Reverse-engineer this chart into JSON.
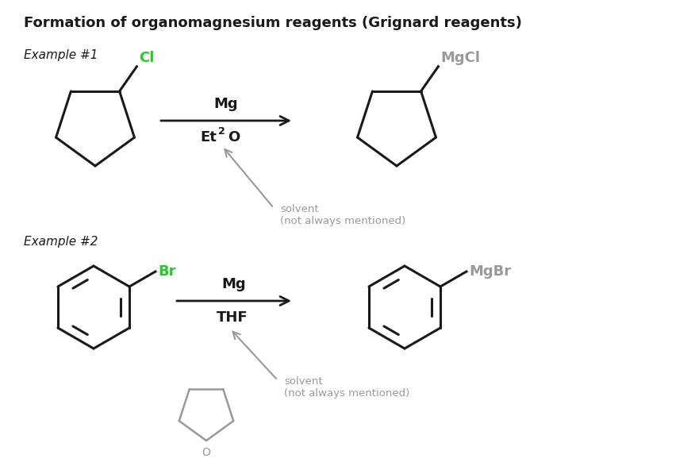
{
  "title": "Formation of organomagnesium reagents (Grignard reagents)",
  "title_fontsize": 13,
  "background_color": "#ffffff",
  "example1_label": "Example #1",
  "example2_label": "Example #2",
  "gray_color": "#999999",
  "green_color": "#22cc22",
  "black_color": "#1a1a1a",
  "reaction1_above": "Mg",
  "reaction1_below_et": "Et",
  "reaction1_below_sub": "2",
  "reaction1_below_o": "O",
  "reaction2_above": "Mg",
  "reaction2_below": "THF",
  "solvent_note": "solvent\n(not always mentioned)",
  "mgcl_label": "MgCl",
  "mgbr_label": "MgBr",
  "cl_label": "Cl",
  "br_label": "Br",
  "o_label": "O"
}
